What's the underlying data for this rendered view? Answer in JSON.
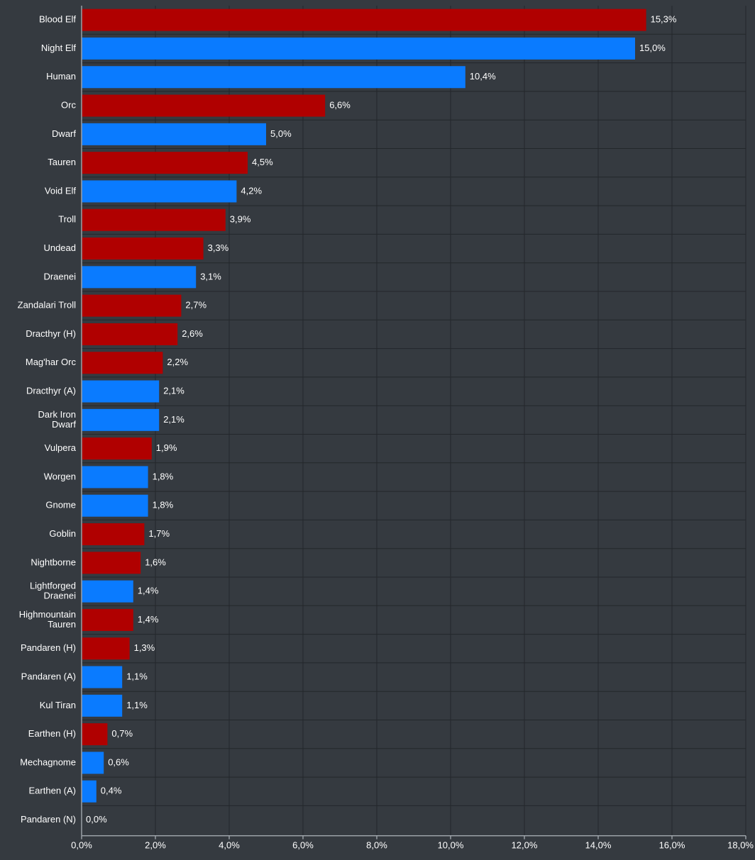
{
  "chart_data": {
    "type": "bar",
    "orientation": "horizontal",
    "title": "",
    "xlabel": "",
    "ylabel": "",
    "xlim": [
      0,
      18
    ],
    "grid": true,
    "x_ticks": [
      "0,0%",
      "2,0%",
      "4,0%",
      "6,0%",
      "8,0%",
      "10,0%",
      "12,0%",
      "14,0%",
      "16,0%",
      "18,0%"
    ],
    "colors": {
      "horde": "#b00000",
      "alliance": "#0a7bff",
      "neutral": "#8a8a8a"
    },
    "bars": [
      {
        "category": [
          "Blood Elf"
        ],
        "value": 15.3,
        "label": "15,3%",
        "faction": "horde"
      },
      {
        "category": [
          "Night Elf"
        ],
        "value": 15.0,
        "label": "15,0%",
        "faction": "alliance"
      },
      {
        "category": [
          "Human"
        ],
        "value": 10.4,
        "label": "10,4%",
        "faction": "alliance"
      },
      {
        "category": [
          "Orc"
        ],
        "value": 6.6,
        "label": "6,6%",
        "faction": "horde"
      },
      {
        "category": [
          "Dwarf"
        ],
        "value": 5.0,
        "label": "5,0%",
        "faction": "alliance"
      },
      {
        "category": [
          "Tauren"
        ],
        "value": 4.5,
        "label": "4,5%",
        "faction": "horde"
      },
      {
        "category": [
          "Void Elf"
        ],
        "value": 4.2,
        "label": "4,2%",
        "faction": "alliance"
      },
      {
        "category": [
          "Troll"
        ],
        "value": 3.9,
        "label": "3,9%",
        "faction": "horde"
      },
      {
        "category": [
          "Undead"
        ],
        "value": 3.3,
        "label": "3,3%",
        "faction": "horde"
      },
      {
        "category": [
          "Draenei"
        ],
        "value": 3.1,
        "label": "3,1%",
        "faction": "alliance"
      },
      {
        "category": [
          "Zandalari Troll"
        ],
        "value": 2.7,
        "label": "2,7%",
        "faction": "horde"
      },
      {
        "category": [
          "Dracthyr (H)"
        ],
        "value": 2.6,
        "label": "2,6%",
        "faction": "horde"
      },
      {
        "category": [
          "Mag'har Orc"
        ],
        "value": 2.2,
        "label": "2,2%",
        "faction": "horde"
      },
      {
        "category": [
          "Dracthyr (A)"
        ],
        "value": 2.1,
        "label": "2,1%",
        "faction": "alliance"
      },
      {
        "category": [
          "Dark Iron",
          "Dwarf"
        ],
        "value": 2.1,
        "label": "2,1%",
        "faction": "alliance"
      },
      {
        "category": [
          "Vulpera"
        ],
        "value": 1.9,
        "label": "1,9%",
        "faction": "horde"
      },
      {
        "category": [
          "Worgen"
        ],
        "value": 1.8,
        "label": "1,8%",
        "faction": "alliance"
      },
      {
        "category": [
          "Gnome"
        ],
        "value": 1.8,
        "label": "1,8%",
        "faction": "alliance"
      },
      {
        "category": [
          "Goblin"
        ],
        "value": 1.7,
        "label": "1,7%",
        "faction": "horde"
      },
      {
        "category": [
          "Nightborne"
        ],
        "value": 1.6,
        "label": "1,6%",
        "faction": "horde"
      },
      {
        "category": [
          "Lightforged",
          "Draenei"
        ],
        "value": 1.4,
        "label": "1,4%",
        "faction": "alliance"
      },
      {
        "category": [
          "Highmountain",
          "Tauren"
        ],
        "value": 1.4,
        "label": "1,4%",
        "faction": "horde"
      },
      {
        "category": [
          "Pandaren (H)"
        ],
        "value": 1.3,
        "label": "1,3%",
        "faction": "horde"
      },
      {
        "category": [
          "Pandaren (A)"
        ],
        "value": 1.1,
        "label": "1,1%",
        "faction": "alliance"
      },
      {
        "category": [
          "Kul Tiran"
        ],
        "value": 1.1,
        "label": "1,1%",
        "faction": "alliance"
      },
      {
        "category": [
          "Earthen (H)"
        ],
        "value": 0.7,
        "label": "0,7%",
        "faction": "horde"
      },
      {
        "category": [
          "Mechagnome"
        ],
        "value": 0.6,
        "label": "0,6%",
        "faction": "alliance"
      },
      {
        "category": [
          "Earthen (A)"
        ],
        "value": 0.4,
        "label": "0,4%",
        "faction": "alliance"
      },
      {
        "category": [
          "Pandaren (N)"
        ],
        "value": 0.0,
        "label": "0,0%",
        "faction": "neutral"
      }
    ]
  }
}
